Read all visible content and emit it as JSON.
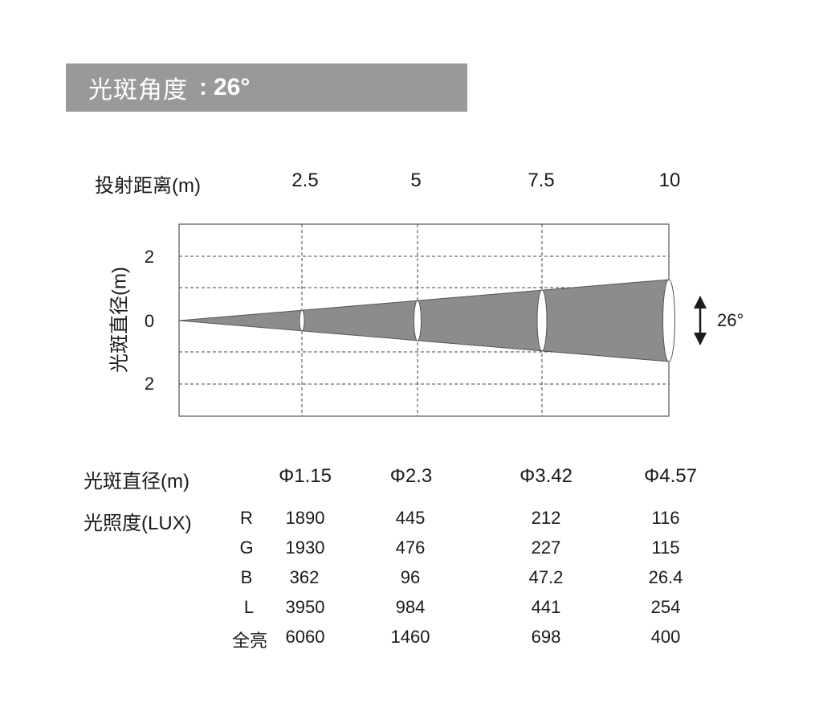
{
  "header": {
    "title": "光斑角度",
    "colon": ":",
    "angle": "26°"
  },
  "distance_label": "投射距离(m)",
  "distances": [
    "2.5",
    "5",
    "7.5",
    "10"
  ],
  "diagram": {
    "ylabel": "光斑直径(m)",
    "yticks": [
      "2",
      "0",
      "2"
    ],
    "beam_angle_label": "26°",
    "beam_color": "#8c8c8c"
  },
  "diameter_label": "光斑直径(m)",
  "diameters": [
    "Φ1.15",
    "Φ2.3",
    "Φ3.42",
    "Φ4.57"
  ],
  "illuminance_label": "光照度(LUX)",
  "illuminance_rows": [
    {
      "channel": "R",
      "values": [
        "1890",
        "445",
        "212",
        "116"
      ]
    },
    {
      "channel": "G",
      "values": [
        "1930",
        "476",
        "227",
        "115"
      ]
    },
    {
      "channel": "B",
      "values": [
        "362",
        "96",
        "47.2",
        "26.4"
      ]
    },
    {
      "channel": "L",
      "values": [
        "3950",
        "984",
        "441",
        "254"
      ]
    },
    {
      "channel": "全亮",
      "values": [
        "6060",
        "1460",
        "698",
        "400"
      ]
    }
  ]
}
